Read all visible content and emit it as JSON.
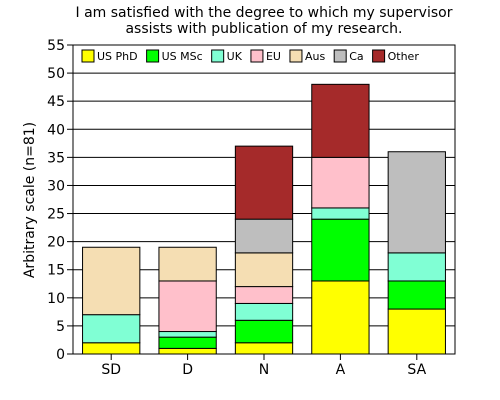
{
  "chart_data": {
    "type": "bar",
    "stacked": true,
    "title": "I am satisfied with the degree to which my supervisor assists with publication of my research.",
    "title_lines": [
      "I am satisfied with the degree to which my supervisor",
      "assists with publication of my research."
    ],
    "xlabel": "",
    "ylabel": "Arbitrary scale (n=81)",
    "ylim": [
      0,
      55
    ],
    "yticks": [
      0,
      5,
      10,
      15,
      20,
      25,
      30,
      35,
      40,
      45,
      50,
      55
    ],
    "grid": true,
    "legend_position": "top",
    "categories": [
      "SD",
      "D",
      "N",
      "A",
      "SA"
    ],
    "series": [
      {
        "name": "US PhD",
        "color": "#ffff00",
        "values": [
          2,
          1,
          2,
          13,
          8
        ]
      },
      {
        "name": "US MSc",
        "color": "#00ff00",
        "values": [
          0,
          2,
          4,
          11,
          5
        ]
      },
      {
        "name": "UK",
        "color": "#80ffd4",
        "values": [
          5,
          1,
          3,
          2,
          5
        ]
      },
      {
        "name": "EU",
        "color": "#ffc0cb",
        "values": [
          0,
          9,
          3,
          9,
          0
        ]
      },
      {
        "name": "Aus",
        "color": "#f5deb3",
        "values": [
          12,
          6,
          6,
          0,
          0
        ]
      },
      {
        "name": "Ca",
        "color": "#bebebe",
        "values": [
          0,
          0,
          6,
          0,
          18
        ]
      },
      {
        "name": "Other",
        "color": "#a52a2a",
        "values": [
          0,
          0,
          13,
          13,
          0
        ]
      }
    ]
  }
}
